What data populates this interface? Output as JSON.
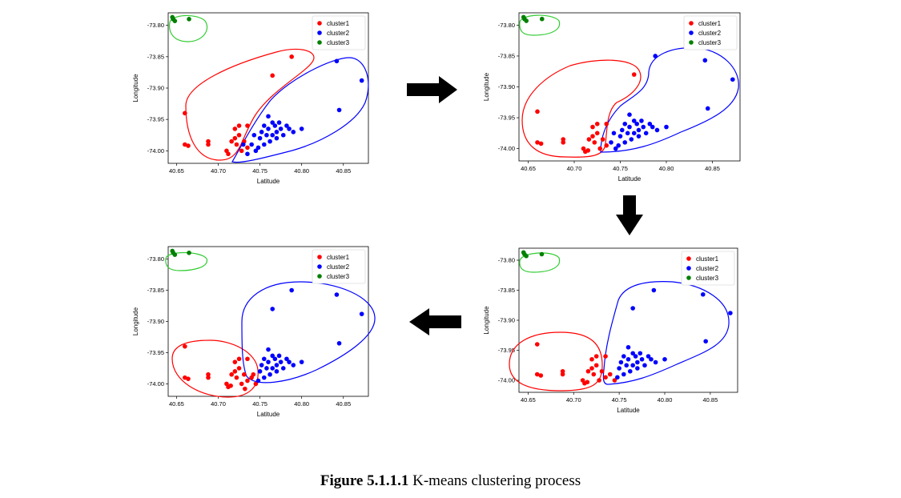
{
  "caption": {
    "label": "Figure 5.1.1.1",
    "text": "K-means clustering process"
  },
  "colors": {
    "cluster1": "#ff0000",
    "cluster2": "#0000ff",
    "cluster3": "#008000",
    "hull3": "#33cc33"
  },
  "chart_data": [
    {
      "type": "scatter",
      "step": 1,
      "xlabel": "Latitude",
      "ylabel": "Longitude",
      "xticks": [
        "40.65",
        "40.70",
        "40.75",
        "40.80",
        "40.85"
      ],
      "yticks": [
        "-73.80",
        "-73.85",
        "-73.90",
        "-73.95",
        "-74.00"
      ],
      "xlim": [
        40.64,
        40.88
      ],
      "ylim": [
        -74.02,
        -73.78
      ],
      "legend_position": "top-right",
      "series": [
        {
          "name": "cluster1",
          "color": "#ff0000",
          "points": [
            [
              40.66,
              -73.94
            ],
            [
              40.66,
              -73.99
            ],
            [
              40.664,
              -73.992
            ],
            [
              40.688,
              -73.99
            ],
            [
              40.688,
              -73.985
            ],
            [
              40.71,
              -74.0
            ],
            [
              40.712,
              -74.005
            ],
            [
              40.72,
              -73.98
            ],
            [
              40.722,
              -73.99
            ],
            [
              40.72,
              -73.965
            ],
            [
              40.725,
              -73.96
            ],
            [
              40.725,
              -73.975
            ],
            [
              40.731,
              -73.985
            ],
            [
              40.735,
              -73.96
            ],
            [
              40.735,
              -73.995
            ],
            [
              40.765,
              -73.88
            ],
            [
              40.788,
              -73.85
            ],
            [
              40.716,
              -73.985
            ],
            [
              40.728,
              -74.0
            ]
          ]
        },
        {
          "name": "cluster2",
          "color": "#0000ff",
          "points": [
            [
              40.74,
              -73.99
            ],
            [
              40.745,
              -74.0
            ],
            [
              40.75,
              -73.98
            ],
            [
              40.752,
              -73.97
            ],
            [
              40.755,
              -73.96
            ],
            [
              40.755,
              -73.99
            ],
            [
              40.758,
              -73.975
            ],
            [
              40.76,
              -73.965
            ],
            [
              40.762,
              -73.985
            ],
            [
              40.765,
              -73.955
            ],
            [
              40.765,
              -73.975
            ],
            [
              40.768,
              -73.96
            ],
            [
              40.77,
              -73.97
            ],
            [
              40.77,
              -73.98
            ],
            [
              40.773,
              -73.955
            ],
            [
              40.775,
              -73.965
            ],
            [
              40.778,
              -73.975
            ],
            [
              40.782,
              -73.96
            ],
            [
              40.785,
              -73.965
            ],
            [
              40.79,
              -73.97
            ],
            [
              40.8,
              -73.965
            ],
            [
              40.743,
              -73.975
            ],
            [
              40.748,
              -73.995
            ],
            [
              40.76,
              -73.945
            ],
            [
              40.842,
              -73.857
            ],
            [
              40.845,
              -73.935
            ],
            [
              40.872,
              -73.888
            ],
            [
              40.73,
              -73.99
            ],
            [
              40.735,
              -74.005
            ]
          ]
        },
        {
          "name": "cluster3",
          "color": "#008000",
          "points": [
            [
              40.645,
              -73.787
            ],
            [
              40.646,
              -73.79
            ],
            [
              40.648,
              -73.793
            ],
            [
              40.665,
              -73.79
            ]
          ]
        }
      ]
    },
    {
      "type": "scatter",
      "step": 2,
      "xlabel": "Latitude",
      "ylabel": "Longitude",
      "xticks": [
        "40.65",
        "40.70",
        "40.75",
        "40.80",
        "40.85"
      ],
      "yticks": [
        "-73.80",
        "-73.85",
        "-73.90",
        "-73.95",
        "-74.00"
      ],
      "xlim": [
        40.64,
        40.88
      ],
      "ylim": [
        -74.02,
        -73.78
      ],
      "legend_position": "top-right",
      "series": [
        {
          "name": "cluster1",
          "color": "#ff0000",
          "points": [
            [
              40.66,
              -73.94
            ],
            [
              40.66,
              -73.99
            ],
            [
              40.664,
              -73.992
            ],
            [
              40.688,
              -73.99
            ],
            [
              40.688,
              -73.985
            ],
            [
              40.71,
              -74.0
            ],
            [
              40.712,
              -74.005
            ],
            [
              40.72,
              -73.98
            ],
            [
              40.722,
              -73.99
            ],
            [
              40.72,
              -73.965
            ],
            [
              40.725,
              -73.96
            ],
            [
              40.725,
              -73.975
            ],
            [
              40.731,
              -73.985
            ],
            [
              40.735,
              -73.96
            ],
            [
              40.735,
              -73.995
            ],
            [
              40.716,
              -73.985
            ],
            [
              40.728,
              -74.0
            ],
            [
              40.765,
              -73.88
            ],
            [
              40.715,
              -74.003
            ]
          ]
        },
        {
          "name": "cluster2",
          "color": "#0000ff",
          "points": [
            [
              40.74,
              -73.99
            ],
            [
              40.745,
              -74.0
            ],
            [
              40.75,
              -73.98
            ],
            [
              40.752,
              -73.97
            ],
            [
              40.755,
              -73.96
            ],
            [
              40.755,
              -73.99
            ],
            [
              40.758,
              -73.975
            ],
            [
              40.76,
              -73.965
            ],
            [
              40.762,
              -73.985
            ],
            [
              40.765,
              -73.955
            ],
            [
              40.765,
              -73.975
            ],
            [
              40.768,
              -73.96
            ],
            [
              40.77,
              -73.97
            ],
            [
              40.77,
              -73.98
            ],
            [
              40.773,
              -73.955
            ],
            [
              40.775,
              -73.965
            ],
            [
              40.778,
              -73.975
            ],
            [
              40.782,
              -73.96
            ],
            [
              40.785,
              -73.965
            ],
            [
              40.79,
              -73.97
            ],
            [
              40.8,
              -73.965
            ],
            [
              40.743,
              -73.975
            ],
            [
              40.748,
              -73.995
            ],
            [
              40.76,
              -73.945
            ],
            [
              40.788,
              -73.85
            ],
            [
              40.842,
              -73.857
            ],
            [
              40.845,
              -73.935
            ],
            [
              40.872,
              -73.888
            ]
          ]
        },
        {
          "name": "cluster3",
          "color": "#008000",
          "points": [
            [
              40.645,
              -73.787
            ],
            [
              40.646,
              -73.79
            ],
            [
              40.648,
              -73.793
            ],
            [
              40.665,
              -73.79
            ]
          ]
        }
      ]
    },
    {
      "type": "scatter",
      "step": 3,
      "xlabel": "Latitude",
      "ylabel": "Longitude",
      "xticks": [
        "40.65",
        "40.70",
        "40.75",
        "40.80",
        "40.85"
      ],
      "yticks": [
        "-73.80",
        "-73.85",
        "-73.90",
        "-73.95",
        "-74.00"
      ],
      "xlim": [
        40.64,
        40.88
      ],
      "ylim": [
        -74.02,
        -73.78
      ],
      "legend_position": "top-right",
      "series": [
        {
          "name": "cluster1",
          "color": "#ff0000",
          "points": [
            [
              40.66,
              -73.94
            ],
            [
              40.66,
              -73.99
            ],
            [
              40.664,
              -73.992
            ],
            [
              40.688,
              -73.99
            ],
            [
              40.688,
              -73.985
            ],
            [
              40.71,
              -74.0
            ],
            [
              40.712,
              -74.005
            ],
            [
              40.72,
              -73.98
            ],
            [
              40.722,
              -73.99
            ],
            [
              40.72,
              -73.965
            ],
            [
              40.725,
              -73.96
            ],
            [
              40.725,
              -73.975
            ],
            [
              40.731,
              -73.985
            ],
            [
              40.735,
              -73.96
            ],
            [
              40.735,
              -73.995
            ],
            [
              40.716,
              -73.985
            ],
            [
              40.728,
              -74.0
            ],
            [
              40.715,
              -74.003
            ],
            [
              40.74,
              -73.99
            ],
            [
              40.745,
              -74.0
            ]
          ]
        },
        {
          "name": "cluster2",
          "color": "#0000ff",
          "points": [
            [
              40.75,
              -73.98
            ],
            [
              40.752,
              -73.97
            ],
            [
              40.755,
              -73.96
            ],
            [
              40.755,
              -73.99
            ],
            [
              40.758,
              -73.975
            ],
            [
              40.76,
              -73.965
            ],
            [
              40.762,
              -73.985
            ],
            [
              40.765,
              -73.955
            ],
            [
              40.765,
              -73.975
            ],
            [
              40.768,
              -73.96
            ],
            [
              40.77,
              -73.97
            ],
            [
              40.77,
              -73.98
            ],
            [
              40.773,
              -73.955
            ],
            [
              40.775,
              -73.965
            ],
            [
              40.778,
              -73.975
            ],
            [
              40.782,
              -73.96
            ],
            [
              40.785,
              -73.965
            ],
            [
              40.79,
              -73.97
            ],
            [
              40.8,
              -73.965
            ],
            [
              40.748,
              -73.995
            ],
            [
              40.76,
              -73.945
            ],
            [
              40.765,
              -73.88
            ],
            [
              40.788,
              -73.85
            ],
            [
              40.842,
              -73.857
            ],
            [
              40.845,
              -73.935
            ],
            [
              40.872,
              -73.888
            ]
          ]
        },
        {
          "name": "cluster3",
          "color": "#008000",
          "points": [
            [
              40.645,
              -73.787
            ],
            [
              40.646,
              -73.79
            ],
            [
              40.648,
              -73.793
            ],
            [
              40.665,
              -73.79
            ]
          ]
        }
      ]
    },
    {
      "type": "scatter",
      "step": 4,
      "xlabel": "Latitude",
      "ylabel": "Longitude",
      "xticks": [
        "40.65",
        "40.70",
        "40.75",
        "40.80",
        "40.85"
      ],
      "yticks": [
        "-73.80",
        "-73.85",
        "-73.90",
        "-73.95",
        "-74.00"
      ],
      "xlim": [
        40.64,
        40.88
      ],
      "ylim": [
        -74.02,
        -73.78
      ],
      "legend_position": "top-right",
      "series": [
        {
          "name": "cluster1",
          "color": "#ff0000",
          "points": [
            [
              40.66,
              -73.94
            ],
            [
              40.66,
              -73.99
            ],
            [
              40.664,
              -73.992
            ],
            [
              40.688,
              -73.99
            ],
            [
              40.688,
              -73.985
            ],
            [
              40.71,
              -74.0
            ],
            [
              40.712,
              -74.005
            ],
            [
              40.72,
              -73.98
            ],
            [
              40.722,
              -73.99
            ],
            [
              40.72,
              -73.965
            ],
            [
              40.725,
              -73.96
            ],
            [
              40.725,
              -73.975
            ],
            [
              40.731,
              -73.985
            ],
            [
              40.735,
              -73.96
            ],
            [
              40.735,
              -73.995
            ],
            [
              40.716,
              -73.985
            ],
            [
              40.728,
              -74.0
            ],
            [
              40.715,
              -74.003
            ],
            [
              40.74,
              -73.99
            ],
            [
              40.745,
              -74.0
            ],
            [
              40.742,
              -73.985
            ],
            [
              40.732,
              -74.008
            ]
          ]
        },
        {
          "name": "cluster2",
          "color": "#0000ff",
          "points": [
            [
              40.75,
              -73.98
            ],
            [
              40.752,
              -73.97
            ],
            [
              40.755,
              -73.96
            ],
            [
              40.755,
              -73.99
            ],
            [
              40.758,
              -73.975
            ],
            [
              40.76,
              -73.965
            ],
            [
              40.762,
              -73.985
            ],
            [
              40.765,
              -73.955
            ],
            [
              40.765,
              -73.975
            ],
            [
              40.768,
              -73.96
            ],
            [
              40.77,
              -73.97
            ],
            [
              40.77,
              -73.98
            ],
            [
              40.773,
              -73.955
            ],
            [
              40.775,
              -73.965
            ],
            [
              40.778,
              -73.975
            ],
            [
              40.782,
              -73.96
            ],
            [
              40.785,
              -73.965
            ],
            [
              40.79,
              -73.97
            ],
            [
              40.8,
              -73.965
            ],
            [
              40.748,
              -73.995
            ],
            [
              40.76,
              -73.945
            ],
            [
              40.765,
              -73.88
            ],
            [
              40.788,
              -73.85
            ],
            [
              40.842,
              -73.857
            ],
            [
              40.845,
              -73.935
            ],
            [
              40.872,
              -73.888
            ]
          ]
        },
        {
          "name": "cluster3",
          "color": "#008000",
          "points": [
            [
              40.645,
              -73.787
            ],
            [
              40.646,
              -73.79
            ],
            [
              40.648,
              -73.793
            ],
            [
              40.665,
              -73.79
            ]
          ]
        }
      ]
    }
  ]
}
